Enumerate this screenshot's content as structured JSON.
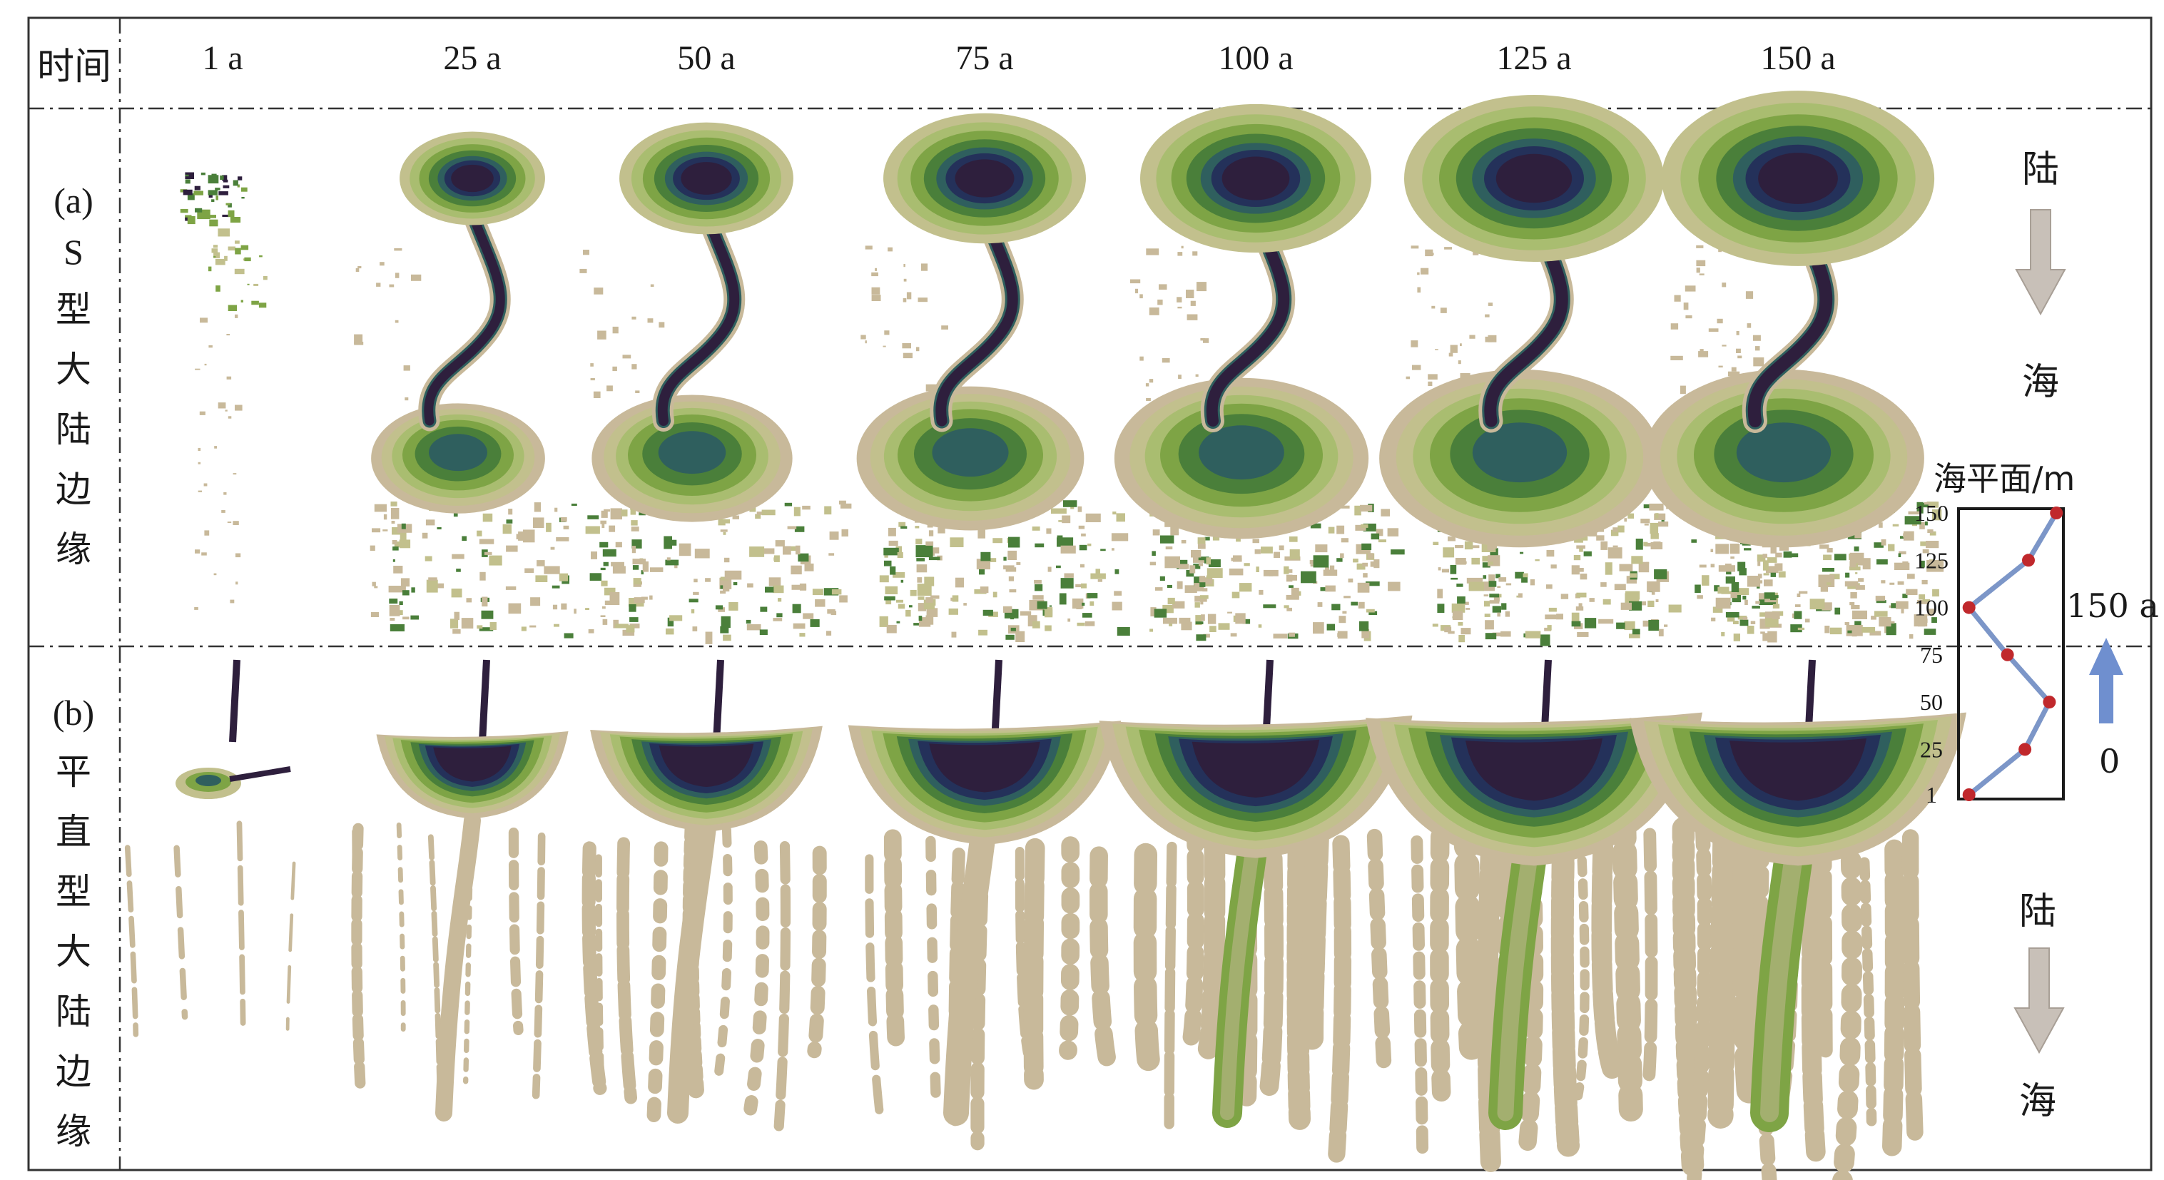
{
  "header": {
    "time_label": "时间",
    "times": [
      "1 a",
      "25 a",
      "50 a",
      "75 a",
      "100 a",
      "125 a",
      "150 a"
    ]
  },
  "rows": [
    {
      "label": "(a)",
      "title_chars": [
        "S",
        "型",
        "大",
        "陆",
        "边",
        "缘"
      ]
    },
    {
      "label": "(b)",
      "title_chars": [
        "平",
        "直",
        "型",
        "大",
        "陆",
        "边",
        "缘"
      ]
    }
  ],
  "legend": {
    "land": "陆",
    "sea": "海",
    "sea_level_title": "海平面/m",
    "y_ticks": [
      "150",
      "125",
      "100",
      "75",
      "50",
      "25",
      "1"
    ],
    "time_top": "150 a",
    "time_bottom": "0"
  },
  "colors": {
    "deep": "#2e1f3d",
    "navy": "#24315a",
    "teal": "#2f5f5e",
    "dark_green": "#4a7f3a",
    "green": "#7ea445",
    "light_green": "#a9bd70",
    "olive": "#c2c08d",
    "sand": "#c8b99a",
    "arrow_gray": "#c8c0b8",
    "arrow_blue": "#6f8fcf",
    "curve_blue": "#7c96c8",
    "point_red": "#c0282c"
  },
  "chart_data": {
    "type": "line",
    "title": "海平面/m",
    "ylabel": "海平面/m",
    "y_ticks": [
      150,
      125,
      100,
      75,
      50,
      25,
      1
    ],
    "ylim": [
      1,
      150
    ],
    "series": [
      {
        "points": [
          [
            150,
            140
          ],
          [
            125,
            100
          ],
          [
            100,
            15
          ],
          [
            75,
            70
          ],
          [
            50,
            130
          ],
          [
            25,
            95
          ],
          [
            1,
            15
          ]
        ]
      }
    ],
    "time_range": {
      "start": "0",
      "end": "150 a"
    }
  }
}
